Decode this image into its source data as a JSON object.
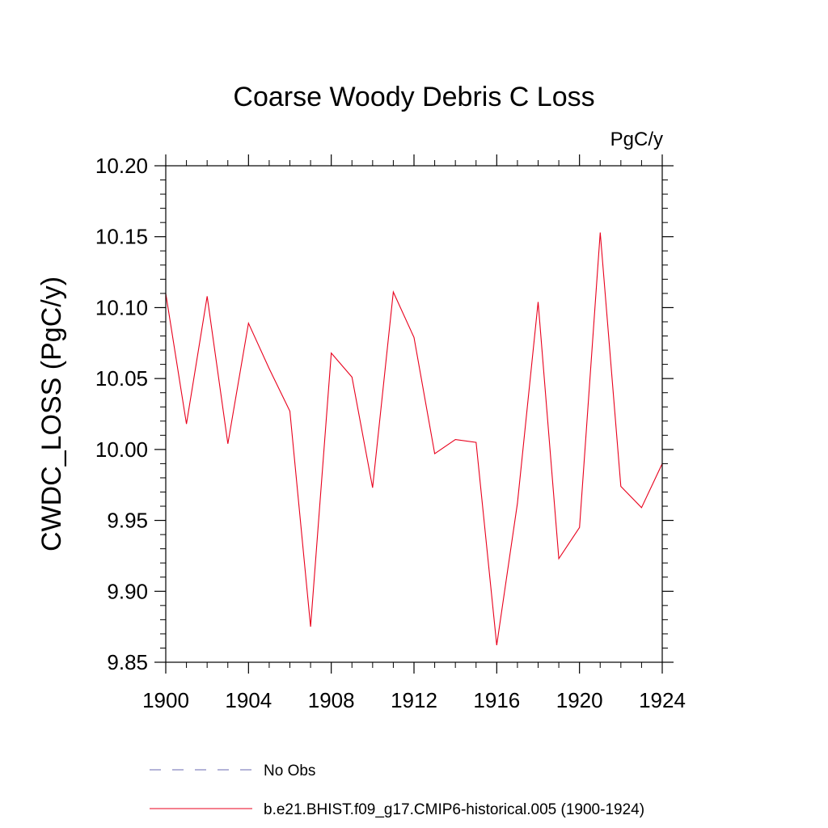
{
  "chart_data": {
    "type": "line",
    "title": "Coarse Woody Debris C Loss",
    "units": "PgC/y",
    "ylabel": "CWDC_LOSS  (PgC/y)",
    "xlabel": "",
    "xlim": [
      1900,
      1924
    ],
    "ylim": [
      9.85,
      10.2
    ],
    "x_ticks": [
      1900,
      1904,
      1908,
      1912,
      1916,
      1920,
      1924
    ],
    "x_tick_labels": [
      "1900",
      "1904",
      "1908",
      "1912",
      "1916",
      "1920",
      "1924"
    ],
    "y_ticks": [
      9.85,
      9.9,
      9.95,
      10.0,
      10.05,
      10.1,
      10.15,
      10.2
    ],
    "y_tick_labels": [
      "9.85",
      "9.90",
      "9.95",
      "10.00",
      "10.05",
      "10.10",
      "10.15",
      "10.20"
    ],
    "grid": false,
    "legend_position": "bottom",
    "series": [
      {
        "name": "b.e21.BHIST.f09_g17.CMIP6-historical.005 (1900-1924)",
        "color": "#e8001c",
        "style": "solid",
        "x": [
          1900,
          1901,
          1902,
          1903,
          1904,
          1905,
          1906,
          1907,
          1908,
          1909,
          1910,
          1911,
          1912,
          1913,
          1914,
          1915,
          1916,
          1917,
          1918,
          1919,
          1920,
          1921,
          1922,
          1923,
          1924
        ],
        "values": [
          10.11,
          10.018,
          10.108,
          10.004,
          10.089,
          10.057,
          10.027,
          9.875,
          10.068,
          10.051,
          9.973,
          10.111,
          10.079,
          9.997,
          10.007,
          10.005,
          9.862,
          9.962,
          10.104,
          9.923,
          9.945,
          10.153,
          9.974,
          9.959,
          9.99
        ]
      }
    ],
    "legend": [
      {
        "label": "No Obs",
        "color": "#6a6ab0",
        "style": "dashed"
      },
      {
        "label": "b.e21.BHIST.f09_g17.CMIP6-historical.005 (1900-1924)",
        "color": "#e8001c",
        "style": "solid"
      }
    ]
  }
}
